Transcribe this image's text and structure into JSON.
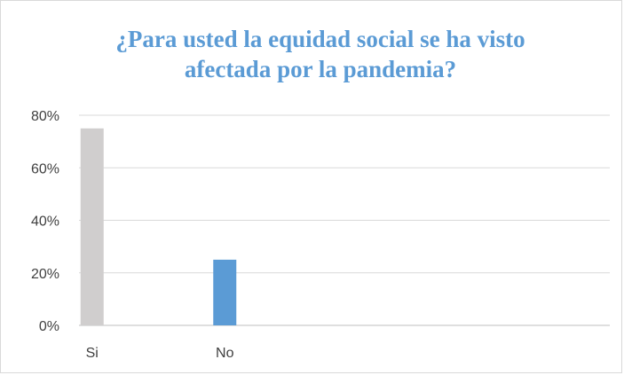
{
  "chart_data": {
    "type": "bar",
    "title_lines": [
      "¿Para usted la equidad social se ha visto",
      "afectada por  la pandemia?"
    ],
    "categories": [
      "Si",
      "No",
      "",
      ""
    ],
    "values": [
      0.75,
      0.25,
      null,
      null
    ],
    "bar_colors": [
      "#d0cece",
      "#5b9bd5"
    ],
    "ylim": [
      0,
      0.8
    ],
    "yticks": [
      0,
      0.2,
      0.4,
      0.6,
      0.8
    ],
    "ytick_labels": [
      "0%",
      "20%",
      "40%",
      "60%",
      "80%"
    ],
    "grid": true,
    "legend": "none"
  }
}
